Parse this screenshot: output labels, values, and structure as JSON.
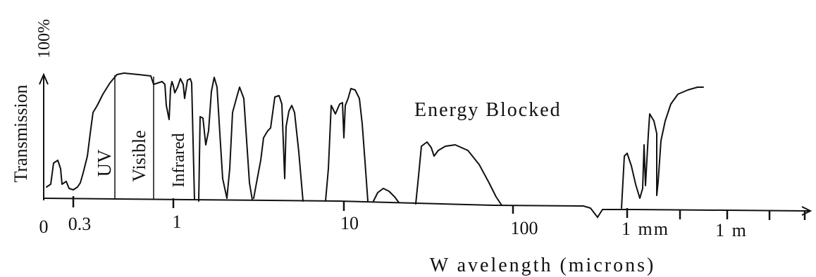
{
  "y_axis": {
    "label": "Transmission",
    "top_label": "100%"
  },
  "x_axis": {
    "label": "W avelength (microns)",
    "tick_labels": [
      "0",
      "0.3",
      "1",
      "10",
      "100",
      "1 mm",
      "1 m"
    ]
  },
  "band_labels": [
    "UV",
    "Visible",
    "Infrared"
  ],
  "annotation": "Energy Blocked",
  "colors": {
    "line": "#111111",
    "background": "#ffffff"
  }
}
